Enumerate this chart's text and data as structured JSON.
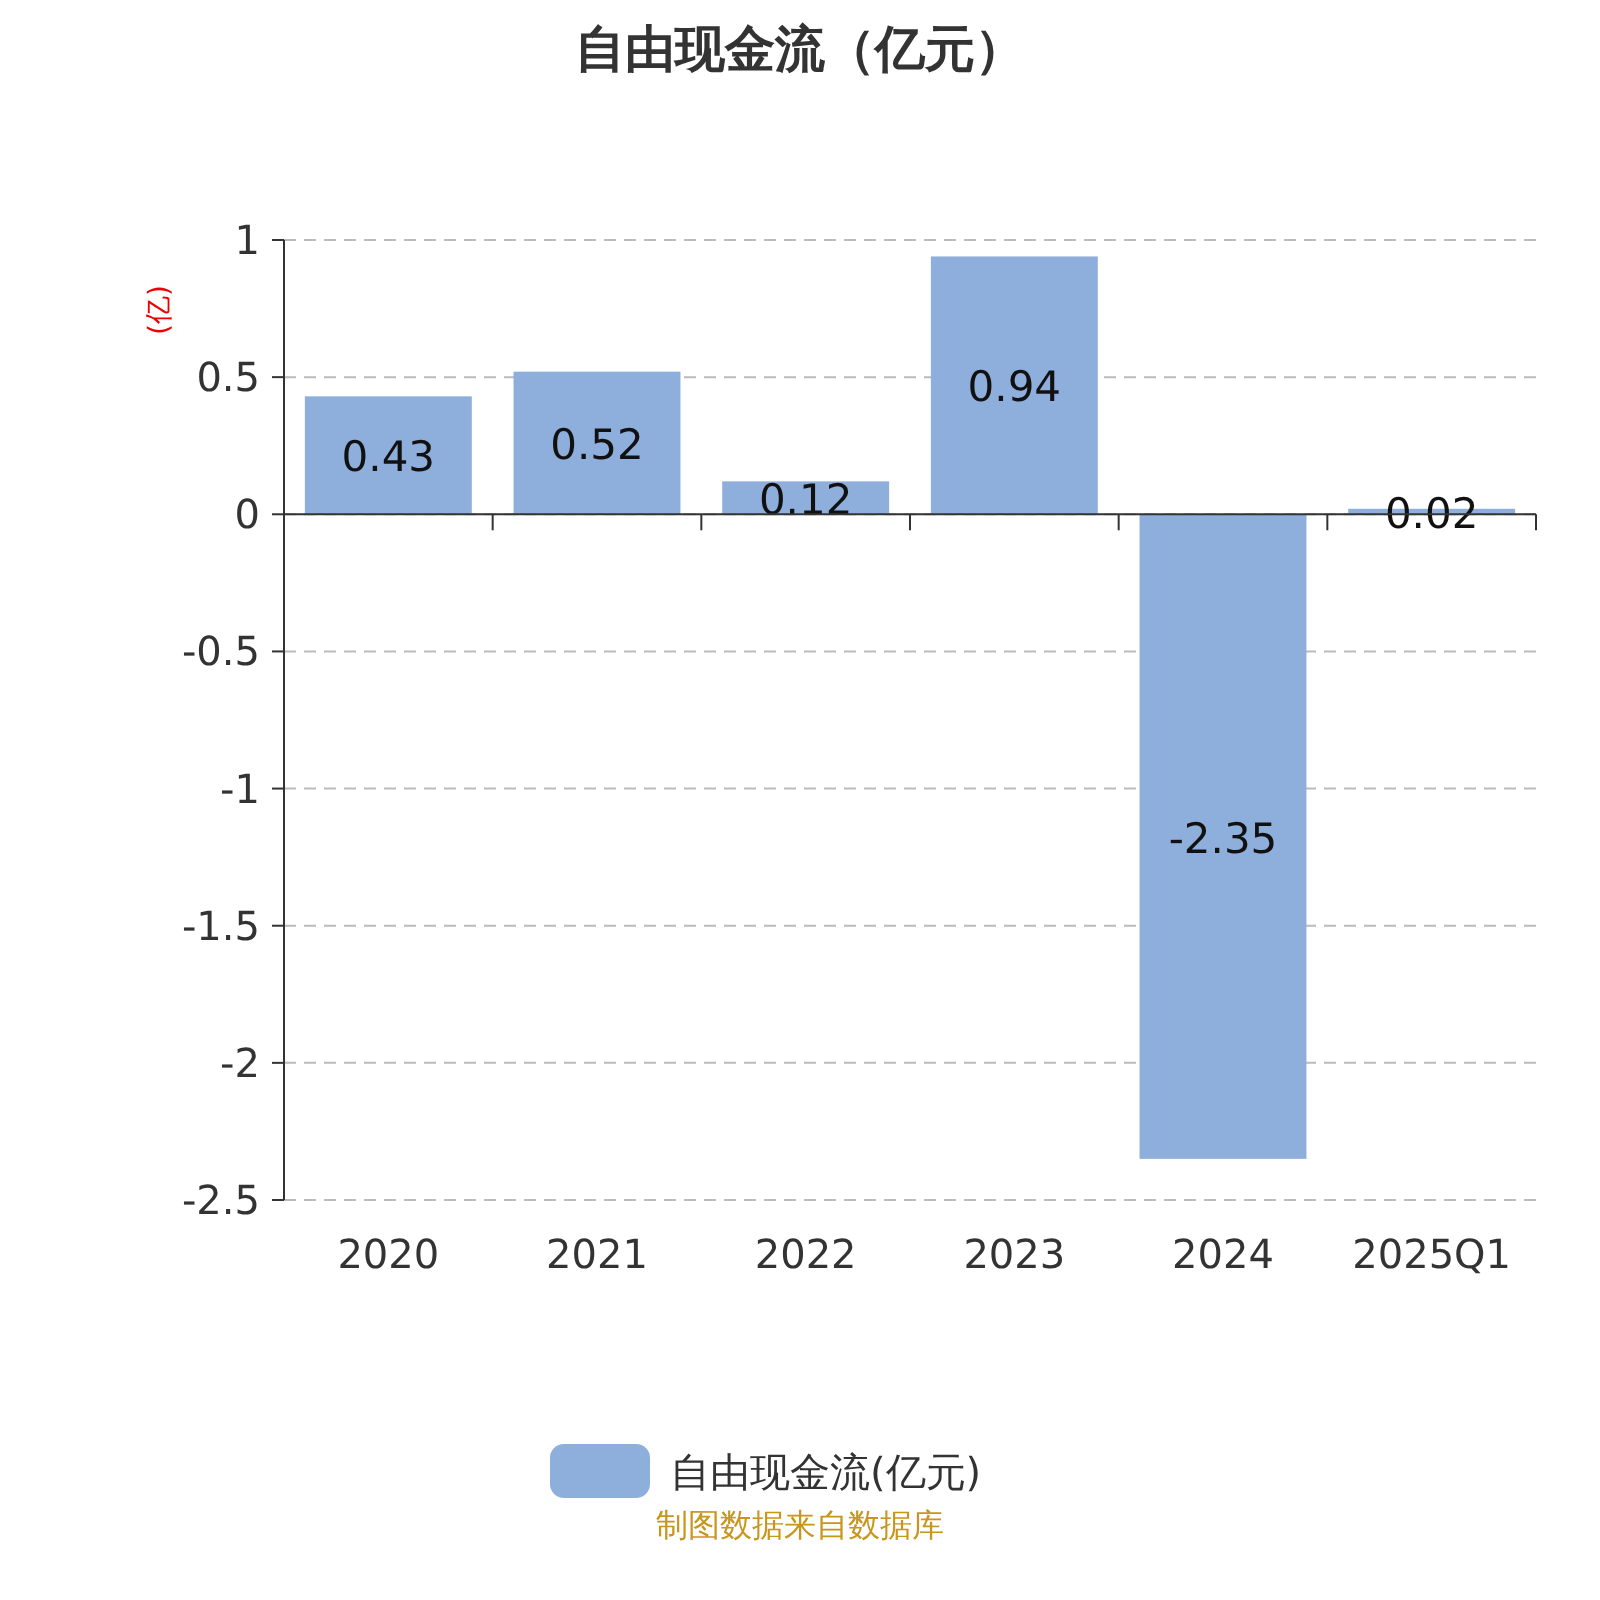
{
  "chart_data": {
    "type": "bar",
    "title": "自由现金流（亿元）",
    "ylabel": "(亿)",
    "categories": [
      "2020",
      "2021",
      "2022",
      "2023",
      "2024",
      "2025Q1"
    ],
    "series": [
      {
        "name": "自由现金流(亿元)",
        "color": "#8eaedb",
        "values": [
          0.43,
          0.52,
          0.12,
          0.94,
          -2.35,
          0.02
        ]
      }
    ],
    "ylim": [
      -2.5,
      1
    ],
    "yticks": [
      -2.5,
      -2,
      -1.5,
      -1,
      -0.5,
      0,
      0.5,
      1
    ],
    "grid": "y",
    "legend": "bottom",
    "data_labels": true,
    "annotations": [
      "制图数据来自数据库"
    ]
  }
}
